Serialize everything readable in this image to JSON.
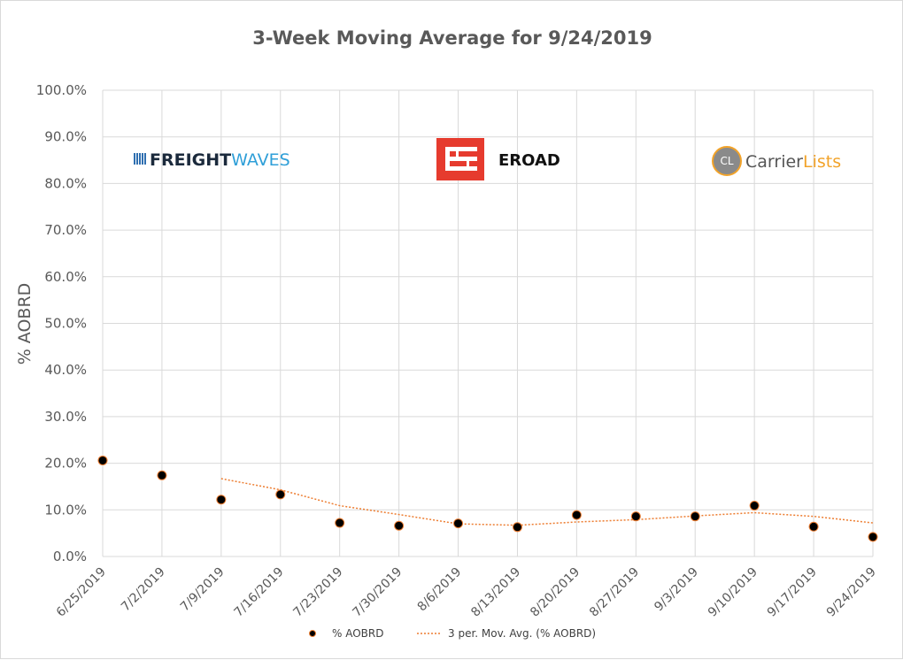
{
  "chart_data": {
    "type": "scatter",
    "title": "3-Week Moving Average for 9/24/2019",
    "xlabel": "",
    "ylabel": "% AOBRD",
    "ylim": [
      0,
      100
    ],
    "grid": true,
    "categories": [
      "6/25/2019",
      "7/2/2019",
      "7/9/2019",
      "7/16/2019",
      "7/23/2019",
      "7/30/2019",
      "8/6/2019",
      "8/13/2019",
      "8/20/2019",
      "8/27/2019",
      "9/3/2019",
      "9/10/2019",
      "9/17/2019",
      "9/24/2019"
    ],
    "y_ticks": [
      "0.0%",
      "10.0%",
      "20.0%",
      "30.0%",
      "40.0%",
      "50.0%",
      "60.0%",
      "70.0%",
      "80.0%",
      "90.0%",
      "100.0%"
    ],
    "series": [
      {
        "name": "% AOBRD",
        "kind": "markers",
        "color": "#000000",
        "edge_color": "#ed7d31",
        "values": [
          20.6,
          17.4,
          12.2,
          13.3,
          7.2,
          6.6,
          7.1,
          6.3,
          8.9,
          8.6,
          8.6,
          10.9,
          6.4,
          4.2
        ]
      },
      {
        "name": "3 per. Mov. Avg. (% AOBRD)",
        "kind": "trendline-dotted",
        "color": "#ed7d31",
        "values": [
          null,
          null,
          16.7,
          14.3,
          10.9,
          9.0,
          7.0,
          6.7,
          7.4,
          7.9,
          8.7,
          9.4,
          8.6,
          7.2
        ]
      }
    ],
    "legend": {
      "placement": "bottom"
    }
  },
  "logos": {
    "freightwaves": {
      "part1": "FREIGHT",
      "part2": "WAVES"
    },
    "eroad": {
      "name": "EROAD",
      "color": "#e63b2e"
    },
    "carrierlists": {
      "badge": "CL",
      "part1": "Carrier",
      "part2": "Lists"
    }
  }
}
